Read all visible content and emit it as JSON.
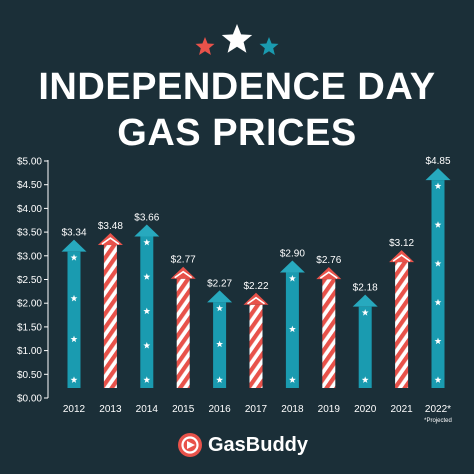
{
  "colors": {
    "background": "#1b2f38",
    "red": "#e8524a",
    "white": "#ffffff",
    "teal": "#1a9bb0",
    "teal_light": "#27a9be"
  },
  "header": {
    "title_line1": "INDEPENDENCE DAY",
    "title_line2": "GAS PRICES",
    "stars": [
      "red-star",
      "white-star",
      "teal-star"
    ]
  },
  "chart_data": {
    "type": "bar",
    "title": "INDEPENDENCE DAY GAS PRICES",
    "categories": [
      "2012",
      "2013",
      "2014",
      "2015",
      "2016",
      "2017",
      "2018",
      "2019",
      "2020",
      "2021",
      "2022*"
    ],
    "values": [
      3.34,
      3.48,
      3.66,
      2.77,
      2.27,
      2.22,
      2.9,
      2.76,
      2.18,
      3.12,
      4.85
    ],
    "value_labels": [
      "$3.34",
      "$3.48",
      "$3.66",
      "$2.77",
      "$2.27",
      "$2.22",
      "$2.90",
      "$2.76",
      "$2.18",
      "$3.12",
      "$4.85"
    ],
    "styles": [
      "teal",
      "red",
      "teal",
      "red",
      "teal",
      "red",
      "teal",
      "red",
      "teal",
      "red",
      "teal"
    ],
    "note": "*Projected",
    "ylim": [
      0,
      5.0
    ],
    "yticks": [
      0,
      0.5,
      1.0,
      1.5,
      2.0,
      2.5,
      3.0,
      3.5,
      4.0,
      4.5,
      5.0
    ],
    "ytick_labels": [
      "$0.00",
      "$0.50",
      "$1.00",
      "$1.50",
      "$2.00",
      "$2.50",
      "$3.00",
      "$3.50",
      "$4.00",
      "$4.50",
      "$5.00"
    ],
    "xlabel": "",
    "ylabel": "",
    "grid": false,
    "legend": "none"
  },
  "footer": {
    "brand": "GasBuddy"
  }
}
